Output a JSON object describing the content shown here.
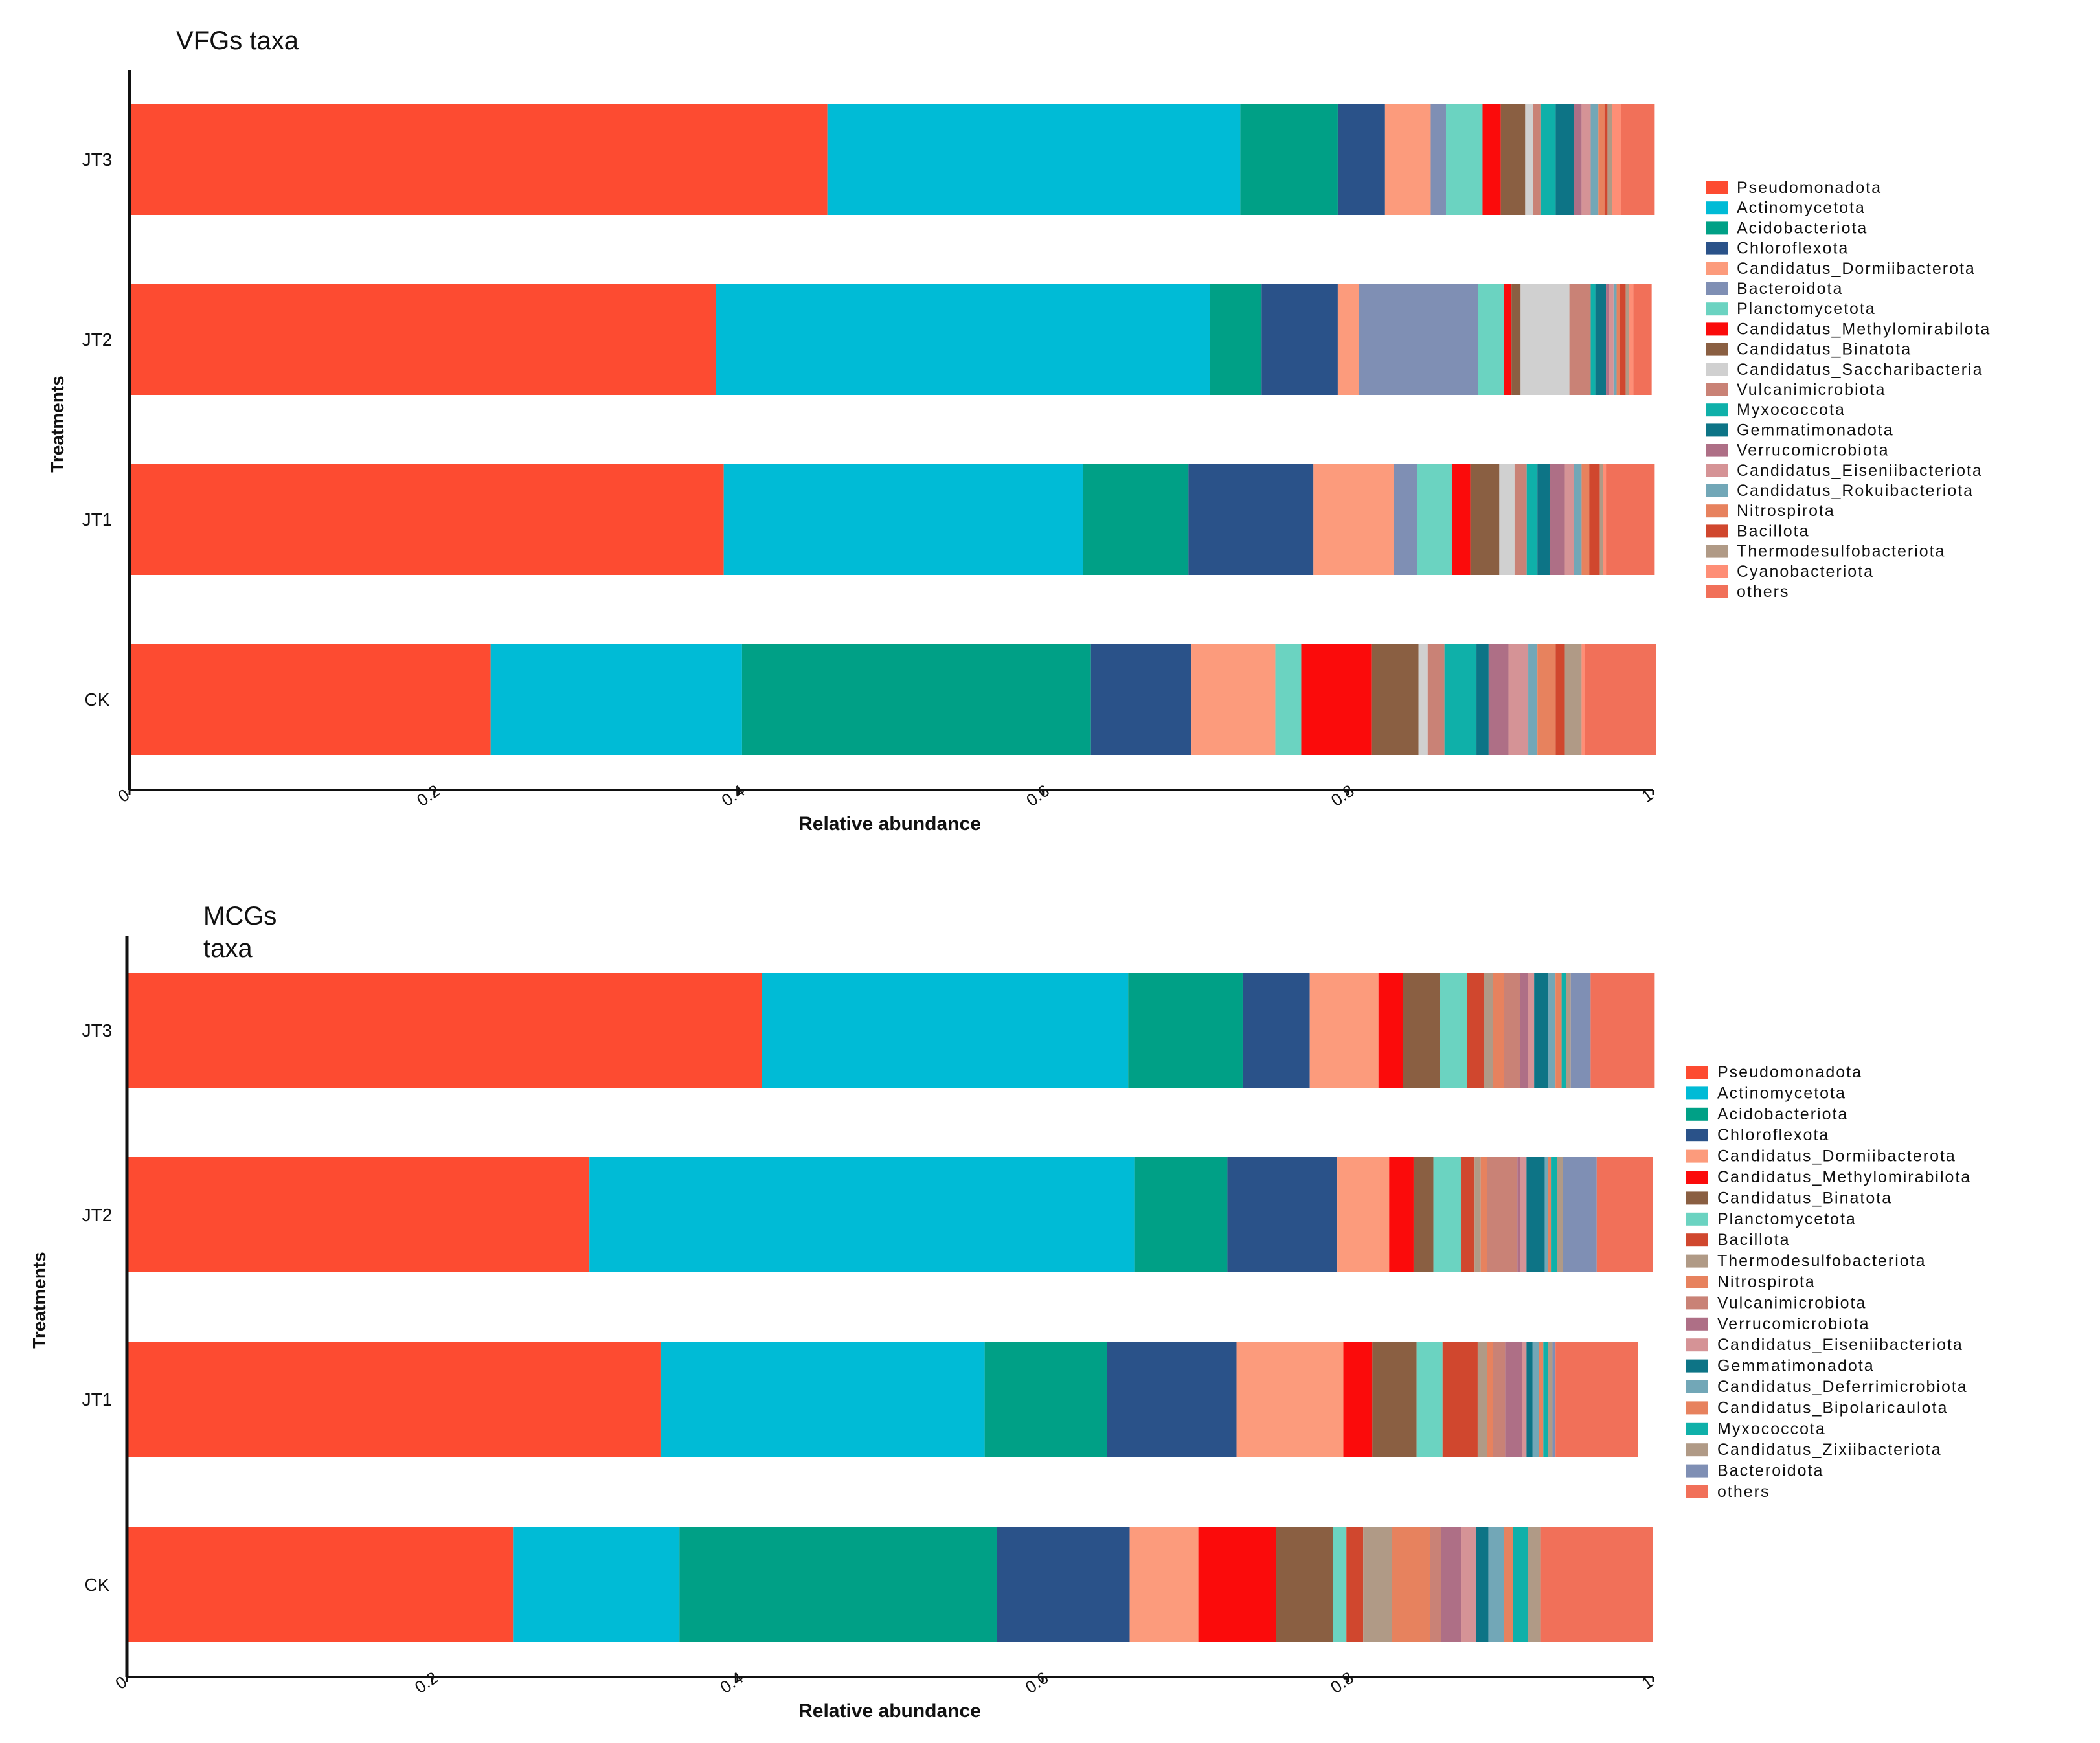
{
  "colors": {
    "Pseudomonadota": "#fd4b31",
    "Actinomycetota": "#00bbd6",
    "Acidobacteriota": "#00a086",
    "Chloroflexota": "#2a5289",
    "Candidatus_Dormiibacterota": "#fc9b7c",
    "Bacteroidota": "#7f8fb4",
    "Planctomycetota": "#6bd3c1",
    "Candidatus_Methylomirabilota": "#fb0b0b",
    "Candidatus_Binatota": "#8a5f42",
    "Candidatus_Saccharibacteria": "#d0d0d0",
    "Vulcanimicrobiota": "#c98276",
    "Myxococcota": "#0fb0a9",
    "Gemmatimonadota": "#0d7486",
    "Verrucomicrobiota": "#ae6f86",
    "Candidatus_Eiseniibacteriota": "#d59396",
    "Candidatus_Rokuibacteriota": "#72a7b7",
    "Nitrospirota": "#e7825e",
    "Bacillota": "#d0472e",
    "Thermodesulfobacteriota": "#b09a86",
    "Cyanobacteriota": "#fe8e76",
    "others": "#f17059",
    "Candidatus_Deferrimicrobiota": "#72a7b7",
    "Candidatus_Bipolaricaulota": "#e7825e",
    "Candidatus_Zixiibacteriota": "#b09a86"
  },
  "chart_data": [
    {
      "type": "bar",
      "orientation": "horizontal",
      "stacked": true,
      "title": "VFGs taxa",
      "xlabel": "Relative abundance",
      "ylabel": "Treatments",
      "xlim": [
        0,
        1
      ],
      "xticks": [
        "0",
        "0.2",
        "0.4",
        "0.6",
        "0.8",
        "1"
      ],
      "categories": [
        "JT3",
        "JT2",
        "JT1",
        "CK"
      ],
      "series": [
        {
          "name": "Pseudomonadota",
          "values": [
            0.458,
            0.385,
            0.39,
            0.237
          ]
        },
        {
          "name": "Actinomycetota",
          "values": [
            0.271,
            0.324,
            0.236,
            0.165
          ]
        },
        {
          "name": "Acidobacteriota",
          "values": [
            0.064,
            0.034,
            0.069,
            0.229
          ]
        },
        {
          "name": "Chloroflexota",
          "values": [
            0.031,
            0.05,
            0.082,
            0.066
          ]
        },
        {
          "name": "Candidatus_Dormiibacterota",
          "values": [
            0.03,
            0.014,
            0.053,
            0.055
          ]
        },
        {
          "name": "Bacteroidota",
          "values": [
            0.01,
            0.078,
            0.015,
            0.0
          ]
        },
        {
          "name": "Planctomycetota",
          "values": [
            0.024,
            0.017,
            0.023,
            0.017
          ]
        },
        {
          "name": "Candidatus_Methylomirabilota",
          "values": [
            0.012,
            0.005,
            0.012,
            0.046
          ]
        },
        {
          "name": "Candidatus_Binatota",
          "values": [
            0.016,
            0.006,
            0.019,
            0.031
          ]
        },
        {
          "name": "Candidatus_Saccharibacteria",
          "values": [
            0.005,
            0.032,
            0.01,
            0.006
          ]
        },
        {
          "name": "Vulcanimicrobiota",
          "values": [
            0.005,
            0.014,
            0.008,
            0.011
          ]
        },
        {
          "name": "Myxococcota",
          "values": [
            0.01,
            0.003,
            0.007,
            0.021
          ]
        },
        {
          "name": "Gemmatimonadota",
          "values": [
            0.012,
            0.007,
            0.008,
            0.008
          ]
        },
        {
          "name": "Verrucomicrobiota",
          "values": [
            0.005,
            0.002,
            0.01,
            0.013
          ]
        },
        {
          "name": "Candidatus_Eiseniibacteriota",
          "values": [
            0.006,
            0.003,
            0.006,
            0.013
          ]
        },
        {
          "name": "Candidatus_Rokuibacteriota",
          "values": [
            0.005,
            0.002,
            0.005,
            0.006
          ]
        },
        {
          "name": "Nitrospirota",
          "values": [
            0.004,
            0.002,
            0.005,
            0.012
          ]
        },
        {
          "name": "Bacillota",
          "values": [
            0.002,
            0.004,
            0.007,
            0.006
          ]
        },
        {
          "name": "Thermodesulfobacteriota",
          "values": [
            0.003,
            0.002,
            0.002,
            0.011
          ]
        },
        {
          "name": "Cyanobacteriota",
          "values": [
            0.006,
            0.003,
            0.002,
            0.002
          ]
        },
        {
          "name": "others",
          "values": [
            0.022,
            0.012,
            0.032,
            0.047
          ]
        }
      ]
    },
    {
      "type": "bar",
      "orientation": "horizontal",
      "stacked": true,
      "title": "MCGs taxa",
      "xlabel": "Relative abundance",
      "ylabel": "Treatments",
      "xlim": [
        0,
        1
      ],
      "xticks": [
        "0",
        "0.2",
        "0.4",
        "0.6",
        "0.8",
        "1"
      ],
      "categories": [
        "JT3",
        "JT2",
        "JT1",
        "CK"
      ],
      "series": [
        {
          "name": "Pseudomonadota",
          "values": [
            0.416,
            0.303,
            0.35,
            0.253
          ]
        },
        {
          "name": "Actinomycetota",
          "values": [
            0.24,
            0.357,
            0.212,
            0.109
          ]
        },
        {
          "name": "Acidobacteriota",
          "values": [
            0.075,
            0.061,
            0.08,
            0.208
          ]
        },
        {
          "name": "Chloroflexota",
          "values": [
            0.044,
            0.072,
            0.085,
            0.087
          ]
        },
        {
          "name": "Candidatus_Dormiibacterota",
          "values": [
            0.045,
            0.034,
            0.07,
            0.045
          ]
        },
        {
          "name": "Candidatus_Methylomirabilota",
          "values": [
            0.016,
            0.016,
            0.019,
            0.051
          ]
        },
        {
          "name": "Candidatus_Binatota",
          "values": [
            0.024,
            0.013,
            0.029,
            0.037
          ]
        },
        {
          "name": "Planctomycetota",
          "values": [
            0.018,
            0.018,
            0.017,
            0.009
          ]
        },
        {
          "name": "Bacillota",
          "values": [
            0.011,
            0.009,
            0.023,
            0.011
          ]
        },
        {
          "name": "Thermodesulfobacteriota",
          "values": [
            0.006,
            0.004,
            0.006,
            0.019
          ]
        },
        {
          "name": "Nitrospirota",
          "values": [
            0.007,
            0.004,
            0.004,
            0.025
          ]
        },
        {
          "name": "Vulcanimicrobiota",
          "values": [
            0.011,
            0.02,
            0.008,
            0.007
          ]
        },
        {
          "name": "Verrucomicrobiota",
          "values": [
            0.005,
            0.002,
            0.011,
            0.013
          ]
        },
        {
          "name": "Candidatus_Eiseniibacteriota",
          "values": [
            0.004,
            0.004,
            0.003,
            0.01
          ]
        },
        {
          "name": "Gemmatimonadota",
          "values": [
            0.009,
            0.012,
            0.004,
            0.008
          ]
        },
        {
          "name": "Candidatus_Deferrimicrobiota",
          "values": [
            0.005,
            0.002,
            0.004,
            0.01
          ]
        },
        {
          "name": "Candidatus_Bipolaricaulota",
          "values": [
            0.004,
            0.002,
            0.003,
            0.006
          ]
        },
        {
          "name": "Myxococcota",
          "values": [
            0.003,
            0.004,
            0.003,
            0.01
          ]
        },
        {
          "name": "Candidatus_Zixiibacteriota",
          "values": [
            0.003,
            0.004,
            0.003,
            0.008
          ]
        },
        {
          "name": "Bacteroidota",
          "values": [
            0.013,
            0.022,
            0.002,
            0.0
          ]
        },
        {
          "name": "others",
          "values": [
            0.042,
            0.037,
            0.054,
            0.074
          ]
        }
      ]
    }
  ]
}
